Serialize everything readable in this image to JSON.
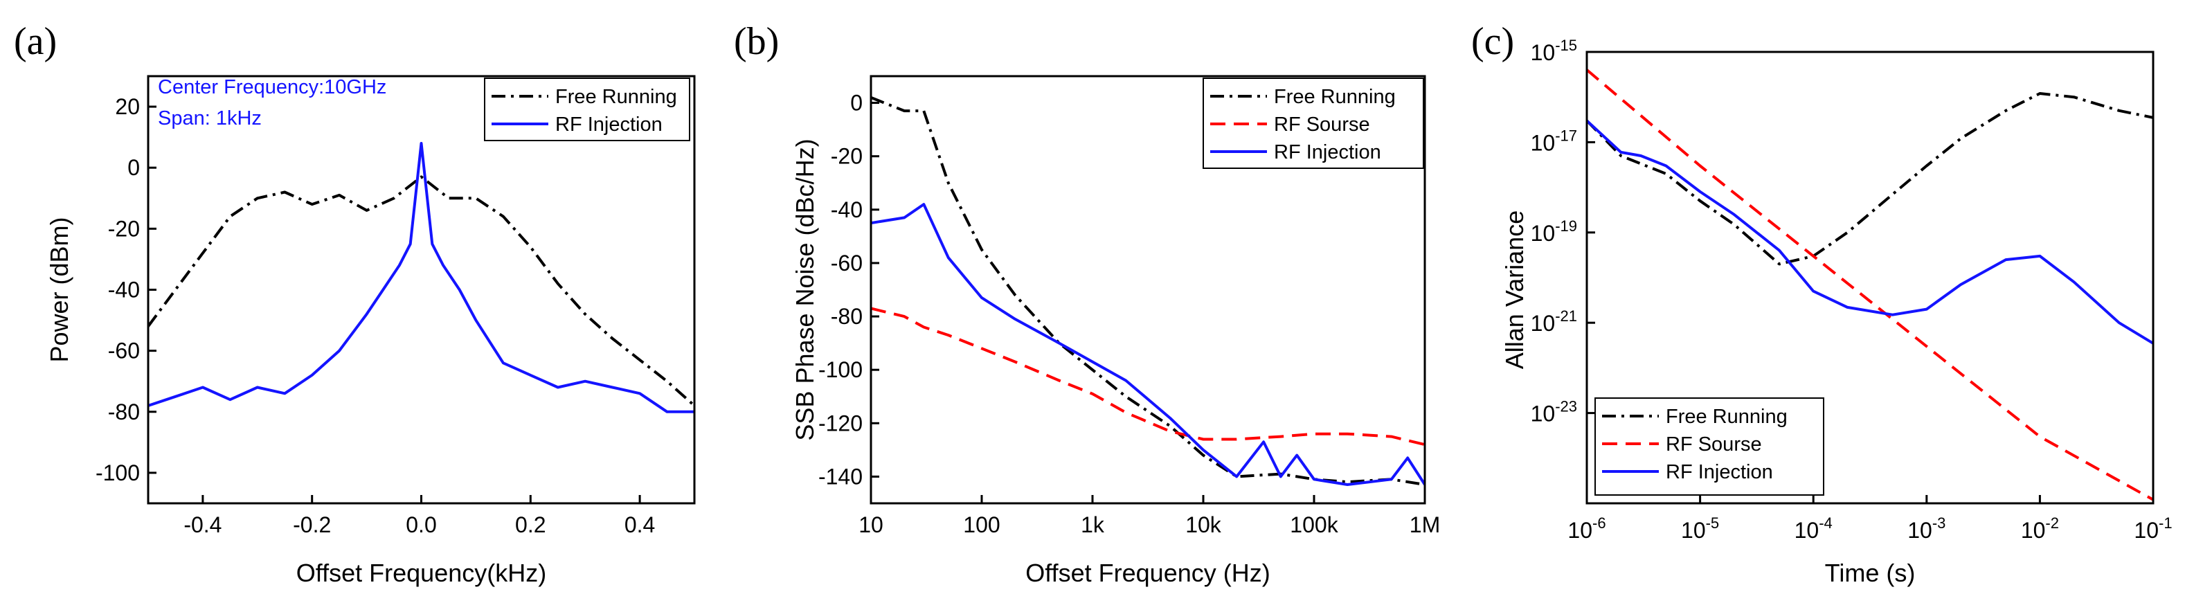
{
  "figure": {
    "panel_labels": [
      "(a)",
      "(b)",
      "(c)"
    ]
  },
  "colors": {
    "free_running": "#000000",
    "rf_source": "#ff0000",
    "rf_injection": "#1414ff",
    "annotation": "#1414ff"
  },
  "chart_data": [
    {
      "id": "a",
      "type": "line",
      "title": "",
      "xlabel": "Offset Frequency(kHz)",
      "ylabel": "Power (dBm)",
      "xscale": "linear",
      "yscale": "linear",
      "xlim": [
        -0.5,
        0.5
      ],
      "ylim": [
        -110,
        30
      ],
      "xticks": [
        -0.4,
        -0.2,
        0.0,
        0.2,
        0.4
      ],
      "xtick_labels": [
        "-0.4",
        "-0.2",
        "0.0",
        "0.2",
        "0.4"
      ],
      "yticks": [
        -100,
        -80,
        -60,
        -40,
        -20,
        0,
        20
      ],
      "ytick_labels": [
        "-100",
        "-80",
        "-60",
        "-40",
        "-20",
        "0",
        "20"
      ],
      "annotations": [
        "Center Frequency:10GHz",
        "Span: 1kHz"
      ],
      "legend_position": "top-right",
      "series": [
        {
          "name": "Free Running",
          "style": "dashdot",
          "color": "#000000",
          "x": [
            -0.5,
            -0.45,
            -0.4,
            -0.35,
            -0.3,
            -0.25,
            -0.2,
            -0.15,
            -0.1,
            -0.05,
            0.0,
            0.05,
            0.1,
            0.15,
            0.2,
            0.25,
            0.3,
            0.35,
            0.4,
            0.45,
            0.5
          ],
          "y": [
            -52,
            -40,
            -28,
            -16,
            -10,
            -8,
            -12,
            -9,
            -14,
            -10,
            -3,
            -10,
            -10,
            -16,
            -26,
            -38,
            -48,
            -56,
            -63,
            -70,
            -78
          ]
        },
        {
          "name": "RF Injection",
          "style": "solid",
          "color": "#1414ff",
          "x": [
            -0.5,
            -0.45,
            -0.4,
            -0.35,
            -0.3,
            -0.25,
            -0.2,
            -0.15,
            -0.1,
            -0.07,
            -0.04,
            -0.02,
            0.0,
            0.02,
            0.04,
            0.07,
            0.1,
            0.15,
            0.2,
            0.25,
            0.3,
            0.35,
            0.4,
            0.45,
            0.5
          ],
          "y": [
            -78,
            -75,
            -72,
            -76,
            -72,
            -74,
            -68,
            -60,
            -48,
            -40,
            -32,
            -25,
            8,
            -25,
            -32,
            -40,
            -50,
            -64,
            -68,
            -72,
            -70,
            -72,
            -74,
            -80,
            -80
          ]
        }
      ]
    },
    {
      "id": "b",
      "type": "line",
      "title": "",
      "xlabel": "Offset Frequency (Hz)",
      "ylabel": "SSB Phase Noise (dBc/Hz)",
      "xscale": "log",
      "yscale": "linear",
      "xlim": [
        10,
        1000000
      ],
      "ylim": [
        -150,
        10
      ],
      "xticks": [
        10,
        100,
        1000,
        10000,
        100000,
        1000000
      ],
      "xtick_labels": [
        "10",
        "100",
        "1k",
        "10k",
        "100k",
        "1M"
      ],
      "yticks": [
        -140,
        -120,
        -100,
        -80,
        -60,
        -40,
        -20,
        0
      ],
      "ytick_labels": [
        "-140",
        "-120",
        "-100",
        "-80",
        "-60",
        "-40",
        "-20",
        "0"
      ],
      "legend_position": "top-right",
      "series": [
        {
          "name": "Free Running",
          "style": "dashdot",
          "color": "#000000",
          "x": [
            10,
            20,
            30,
            50,
            100,
            200,
            500,
            1000,
            2000,
            5000,
            10000,
            20000,
            50000,
            100000,
            200000,
            500000,
            1000000
          ],
          "y": [
            2,
            -3,
            -3,
            -30,
            -55,
            -72,
            -90,
            -100,
            -110,
            -121,
            -132,
            -140,
            -139,
            -141,
            -142,
            -141,
            -143
          ]
        },
        {
          "name": "RF Sourse",
          "style": "dashed",
          "color": "#ff0000",
          "x": [
            10,
            20,
            30,
            50,
            100,
            200,
            500,
            1000,
            2000,
            5000,
            10000,
            20000,
            50000,
            100000,
            200000,
            500000,
            1000000
          ],
          "y": [
            -77,
            -80,
            -84,
            -87,
            -92,
            -97,
            -104,
            -109,
            -116,
            -123,
            -126,
            -126,
            -125,
            -124,
            -124,
            -125,
            -128
          ]
        },
        {
          "name": "RF Injection",
          "style": "solid",
          "color": "#1414ff",
          "x": [
            10,
            20,
            30,
            50,
            100,
            200,
            500,
            1000,
            2000,
            5000,
            10000,
            20000,
            35000,
            50000,
            70000,
            100000,
            200000,
            500000,
            700000,
            1000000
          ],
          "y": [
            -45,
            -43,
            -38,
            -58,
            -73,
            -81,
            -90,
            -97,
            -104,
            -118,
            -130,
            -140,
            -127,
            -140,
            -132,
            -141,
            -143,
            -141,
            -133,
            -143
          ]
        }
      ]
    },
    {
      "id": "c",
      "type": "line",
      "title": "",
      "xlabel": "Time (s)",
      "ylabel": "Allan Variance",
      "xscale": "log",
      "yscale": "log",
      "xlim": [
        1e-06,
        0.1
      ],
      "ylim": [
        1e-25,
        1e-15
      ],
      "xticks": [
        1e-06,
        1e-05,
        0.0001,
        0.001,
        0.01,
        0.1
      ],
      "xtick_labels": [
        "10^-6",
        "10^-5",
        "10^-4",
        "10^-3",
        "10^-2",
        "10^-1"
      ],
      "yticks": [
        1e-23,
        1e-21,
        1e-19,
        1e-17,
        1e-15
      ],
      "ytick_labels": [
        "10^-23",
        "10^-21",
        "10^-19",
        "10^-17",
        "10^-15"
      ],
      "legend_position": "bottom-left",
      "series": [
        {
          "name": "Free Running",
          "style": "dashdot",
          "color": "#000000",
          "x": [
            1e-06,
            2e-06,
            5e-06,
            1e-05,
            2e-05,
            5e-05,
            0.0001,
            0.0002,
            0.0005,
            0.001,
            0.002,
            0.005,
            0.01,
            0.02,
            0.05,
            0.1
          ],
          "y": [
            3e-17,
            5e-18,
            2e-18,
            5e-19,
            1.5e-19,
            2e-20,
            3e-20,
            1e-19,
            7e-19,
            3e-18,
            1.2e-17,
            5e-17,
            1.2e-16,
            1e-16,
            5e-17,
            3.5e-17
          ]
        },
        {
          "name": "RF Sourse",
          "style": "dashed",
          "color": "#ff0000",
          "x": [
            1e-06,
            1e-05,
            0.0001,
            0.001,
            0.01,
            0.1
          ],
          "y": [
            4e-16,
            3e-18,
            3e-20,
            3e-22,
            3e-24,
            1.2e-25
          ]
        },
        {
          "name": "RF Injection",
          "style": "solid",
          "color": "#1414ff",
          "x": [
            1e-06,
            2e-06,
            3e-06,
            5e-06,
            1e-05,
            2e-05,
            5e-05,
            0.0001,
            0.0002,
            0.0005,
            0.001,
            0.002,
            0.005,
            0.01,
            0.02,
            0.05,
            0.1
          ],
          "y": [
            3e-17,
            6e-18,
            5e-18,
            3e-18,
            8e-19,
            2.5e-19,
            4e-20,
            5e-21,
            2.2e-21,
            1.5e-21,
            2e-21,
            7e-21,
            2.5e-20,
            3e-20,
            8e-21,
            1e-21,
            3.5e-22
          ]
        }
      ]
    }
  ]
}
